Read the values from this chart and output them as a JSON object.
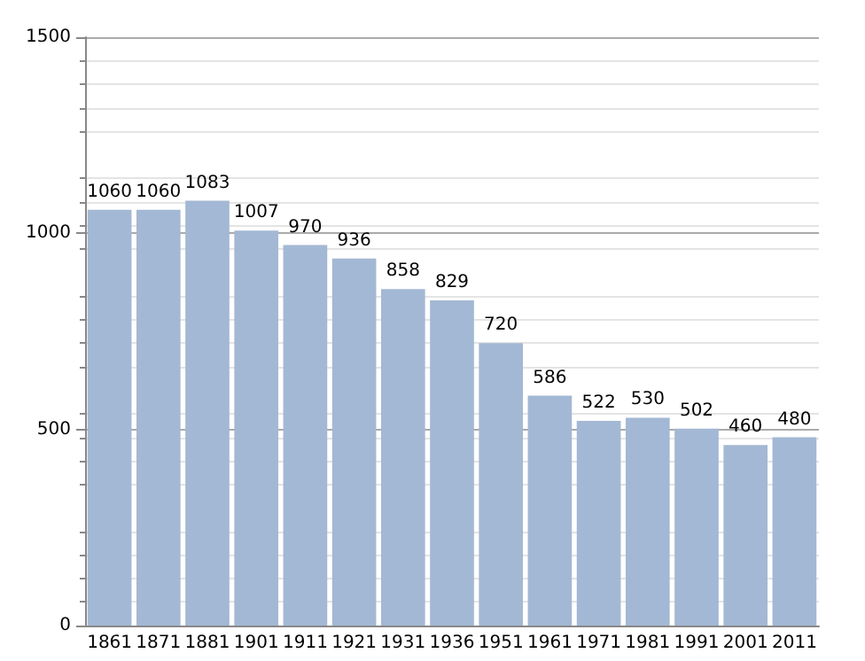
{
  "chart_data": {
    "type": "bar",
    "categories": [
      "1861",
      "1871",
      "1881",
      "1901",
      "1911",
      "1921",
      "1931",
      "1936",
      "1951",
      "1961",
      "1971",
      "1981",
      "1991",
      "2001",
      "2011"
    ],
    "values": [
      1060,
      1060,
      1083,
      1007,
      970,
      936,
      858,
      829,
      720,
      586,
      522,
      530,
      502,
      460,
      480
    ],
    "color": "#a3b8d4",
    "ylim": [
      0,
      1500
    ],
    "yticks": [
      0,
      500,
      1000,
      1500
    ],
    "grid": "y",
    "data_labels": true
  }
}
